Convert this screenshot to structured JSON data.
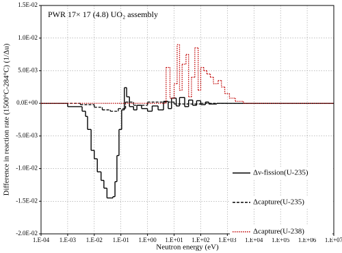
{
  "chart_data": {
    "type": "step",
    "title": "PWR 17× 17 (4.8) UO₂ assembly",
    "x_label": "Neutron energy (eV)",
    "y_label": "Difference in reaction rate (1500°C-284°C) (1/Δu)",
    "xlog": true,
    "grid": true,
    "legend": "lower right",
    "xlim": [
      0.0001,
      10000000
    ],
    "ylim": [
      -0.02,
      0.015
    ],
    "xticks": [
      {
        "value": 0.0001,
        "label": "1.E-04"
      },
      {
        "value": 0.001,
        "label": "1.E-03"
      },
      {
        "value": 0.01,
        "label": "1.E-02"
      },
      {
        "value": 0.1,
        "label": "1.E-01"
      },
      {
        "value": 1,
        "label": "1.E+00"
      },
      {
        "value": 10,
        "label": "1.E+01"
      },
      {
        "value": 100,
        "label": "1.E+02"
      },
      {
        "value": 1000,
        "label": "1.E+03"
      },
      {
        "value": 10000,
        "label": "1.E+04"
      },
      {
        "value": 100000,
        "label": "1.E+05"
      },
      {
        "value": 1000000,
        "label": "1.E+06"
      },
      {
        "value": 10000000,
        "label": "1.E+07"
      }
    ],
    "yticks": [
      {
        "value": 0.015,
        "label": "1.5E-02"
      },
      {
        "value": 0.01,
        "label": "1.0E-02"
      },
      {
        "value": 0.005,
        "label": "5.0E-03"
      },
      {
        "value": 0,
        "label": "0.0E+00"
      },
      {
        "value": -0.005,
        "label": "-5.0E-03"
      },
      {
        "value": -0.01,
        "label": "-1.0E-02"
      },
      {
        "value": -0.015,
        "label": "-1.5E-02"
      },
      {
        "value": -0.02,
        "label": "-2.0E-02"
      }
    ],
    "series": [
      {
        "name": "Δν-fission(U-235)",
        "color": "#000000",
        "dash": "solid",
        "bins": [
          0.0001,
          0.001,
          0.0035,
          0.0047,
          0.0056,
          0.0076,
          0.01,
          0.013,
          0.018,
          0.023,
          0.03,
          0.042,
          0.05,
          0.06,
          0.071,
          0.085,
          0.107,
          0.135,
          0.165,
          0.21,
          0.3,
          0.4,
          0.6,
          1,
          1.5,
          2.5,
          4,
          6,
          8,
          12,
          16,
          25,
          35,
          50,
          70,
          100,
          150,
          200,
          400,
          1000,
          10000000
        ],
        "values": [
          0,
          -0.0005,
          -0.0012,
          -0.002,
          -0.004,
          -0.0072,
          -0.0085,
          -0.0105,
          -0.0118,
          -0.013,
          -0.0145,
          -0.0145,
          -0.0143,
          -0.012,
          -0.008,
          -0.004,
          -0.001,
          0.0024,
          0.001,
          -0.0005,
          -0.001,
          -0.0003,
          -0.0008,
          -0.0012,
          -0.0004,
          -0.001,
          0.0003,
          -0.0008,
          0.0008,
          -0.0004,
          0.0009,
          -0.0005,
          0.0005,
          -0.0003,
          0.0004,
          -0.0002,
          0.0002,
          -0.0001,
          0,
          0
        ]
      },
      {
        "name": "Δcapture(U-235)",
        "color": "#000000",
        "dash": "dashed",
        "bins": [
          0.0001,
          0.003,
          0.01,
          0.02,
          0.04,
          0.08,
          0.15,
          0.3,
          1,
          10,
          100,
          10000000
        ],
        "values": [
          0,
          -0.0002,
          -0.0006,
          -0.001,
          -0.0012,
          -0.0008,
          0.0002,
          -0.0003,
          0.0002,
          -0.0001,
          0
        ]
      },
      {
        "name": "Δcapture(U-238)",
        "color": "#c00000",
        "dash": "dotted",
        "bins": [
          0.0001,
          5,
          7,
          10,
          13,
          16,
          20,
          28,
          35,
          45,
          60,
          80,
          100,
          130,
          170,
          230,
          300,
          450,
          600,
          800,
          1200,
          2000,
          4000,
          10000000
        ],
        "values": [
          0,
          0.0055,
          0.0008,
          0.003,
          0.009,
          0.002,
          0.006,
          0.0075,
          0.001,
          0.004,
          0.0085,
          0.002,
          0.0055,
          0.005,
          0.0045,
          0.004,
          0.003,
          0.0035,
          0.0025,
          0.0015,
          0.0008,
          0.0003,
          0
        ]
      }
    ]
  }
}
